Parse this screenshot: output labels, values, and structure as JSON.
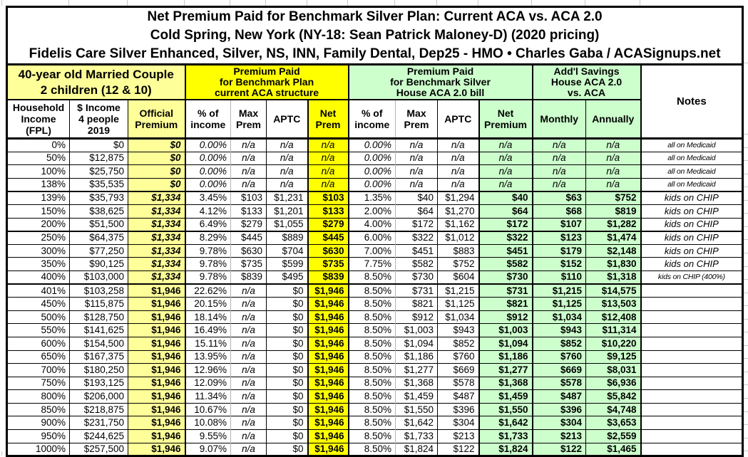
{
  "colors": {
    "pale_yellow": "#FFFF99",
    "bright_yellow": "#FFFF00",
    "pale_green": "#CCFFCC",
    "border": "#000000",
    "gridline": "#C9C9C9"
  },
  "chart_data": {
    "type": "table",
    "title": "Net Premium Paid for Benchmark Silver Plan: Current ACA vs. ACA 2.0",
    "subtitle": "Cold Spring, New York (NY-18: Sean Patrick Maloney-D) (2020 pricing)",
    "plan_attribution": "Fidelis Care Silver Enhanced, Silver, NS, INN, Family Dental, Dep25 - HMO • Charles Gaba / ACASignups.net",
    "column_groups": [
      {
        "label": "40-year old Married Couple\n2 children (12 & 10)",
        "span": 3
      },
      {
        "label": "Premium Paid\nfor Benchmark Plan\ncurrent ACA structure",
        "span": 4
      },
      {
        "label": "Premium Paid\nfor Benchmark Silver\nHouse ACA 2.0 bill",
        "span": 4
      },
      {
        "label": "Add'l Savings\nHouse ACA 2.0\nvs. ACA",
        "span": 2
      },
      {
        "label": "Notes",
        "span": 1
      }
    ],
    "columns": [
      "Household\nIncome\n(FPL)",
      "$ Income\n4 people\n2019",
      "Official\nPremium",
      "% of\nincome",
      "Max\nPrem",
      "APTC",
      "Net\nPrem",
      "% of\nincome",
      "Max\nPrem",
      "APTC",
      "Net\nPremium",
      "Monthly",
      "Annually",
      "Notes"
    ],
    "rows": [
      [
        "0%",
        "$0",
        "$0",
        "0.00%",
        "n/a",
        "n/a",
        "n/a",
        "0.00%",
        "n/a",
        "n/a",
        "n/a",
        "n/a",
        "n/a",
        "all on Medicaid"
      ],
      [
        "50%",
        "$12,875",
        "$0",
        "0.00%",
        "n/a",
        "n/a",
        "n/a",
        "0.00%",
        "n/a",
        "n/a",
        "n/a",
        "n/a",
        "n/a",
        "all on Medicaid"
      ],
      [
        "100%",
        "$25,750",
        "$0",
        "0.00%",
        "n/a",
        "n/a",
        "n/a",
        "0.00%",
        "n/a",
        "n/a",
        "n/a",
        "n/a",
        "n/a",
        "all on Medicaid"
      ],
      [
        "138%",
        "$35,535",
        "$0",
        "0.00%",
        "n/a",
        "n/a",
        "n/a",
        "0.00%",
        "n/a",
        "n/a",
        "n/a",
        "n/a",
        "n/a",
        "all on Medicaid"
      ],
      [
        "139%",
        "$35,793",
        "$1,334",
        "3.45%",
        "$103",
        "$1,231",
        "$103",
        "1.35%",
        "$40",
        "$1,294",
        "$40",
        "$63",
        "$752",
        "kids on CHIP"
      ],
      [
        "150%",
        "$38,625",
        "$1,334",
        "4.12%",
        "$133",
        "$1,201",
        "$133",
        "2.00%",
        "$64",
        "$1,270",
        "$64",
        "$68",
        "$819",
        "kids on CHIP"
      ],
      [
        "200%",
        "$51,500",
        "$1,334",
        "6.49%",
        "$279",
        "$1,055",
        "$279",
        "4.00%",
        "$172",
        "$1,162",
        "$172",
        "$107",
        "$1,282",
        "kids on CHIP"
      ],
      [
        "250%",
        "$64,375",
        "$1,334",
        "8.29%",
        "$445",
        "$889",
        "$445",
        "6.00%",
        "$322",
        "$1,012",
        "$322",
        "$123",
        "$1,474",
        "kids on CHIP"
      ],
      [
        "300%",
        "$77,250",
        "$1,334",
        "9.78%",
        "$630",
        "$704",
        "$630",
        "7.00%",
        "$451",
        "$883",
        "$451",
        "$179",
        "$2,148",
        "kids on CHIP"
      ],
      [
        "350%",
        "$90,125",
        "$1,334",
        "9.78%",
        "$735",
        "$599",
        "$735",
        "7.75%",
        "$582",
        "$752",
        "$582",
        "$152",
        "$1,830",
        "kids on CHIP"
      ],
      [
        "400%",
        "$103,000",
        "$1,334",
        "9.78%",
        "$839",
        "$495",
        "$839",
        "8.50%",
        "$730",
        "$604",
        "$730",
        "$110",
        "$1,318",
        "kids on CHIP (400%)"
      ],
      [
        "401%",
        "$103,258",
        "$1,946",
        "22.62%",
        "n/a",
        "$0",
        "$1,946",
        "8.50%",
        "$731",
        "$1,215",
        "$731",
        "$1,215",
        "$14,575",
        ""
      ],
      [
        "450%",
        "$115,875",
        "$1,946",
        "20.15%",
        "n/a",
        "$0",
        "$1,946",
        "8.50%",
        "$821",
        "$1,125",
        "$821",
        "$1,125",
        "$13,503",
        ""
      ],
      [
        "500%",
        "$128,750",
        "$1,946",
        "18.14%",
        "n/a",
        "$0",
        "$1,946",
        "8.50%",
        "$912",
        "$1,034",
        "$912",
        "$1,034",
        "$12,408",
        ""
      ],
      [
        "550%",
        "$141,625",
        "$1,946",
        "16.49%",
        "n/a",
        "$0",
        "$1,946",
        "8.50%",
        "$1,003",
        "$943",
        "$1,003",
        "$943",
        "$11,314",
        ""
      ],
      [
        "600%",
        "$154,500",
        "$1,946",
        "15.11%",
        "n/a",
        "$0",
        "$1,946",
        "8.50%",
        "$1,094",
        "$852",
        "$1,094",
        "$852",
        "$10,220",
        ""
      ],
      [
        "650%",
        "$167,375",
        "$1,946",
        "13.95%",
        "n/a",
        "$0",
        "$1,946",
        "8.50%",
        "$1,186",
        "$760",
        "$1,186",
        "$760",
        "$9,125",
        ""
      ],
      [
        "700%",
        "$180,250",
        "$1,946",
        "12.96%",
        "n/a",
        "$0",
        "$1,946",
        "8.50%",
        "$1,277",
        "$669",
        "$1,277",
        "$669",
        "$8,031",
        ""
      ],
      [
        "750%",
        "$193,125",
        "$1,946",
        "12.09%",
        "n/a",
        "$0",
        "$1,946",
        "8.50%",
        "$1,368",
        "$578",
        "$1,368",
        "$578",
        "$6,936",
        ""
      ],
      [
        "800%",
        "$206,000",
        "$1,946",
        "11.34%",
        "n/a",
        "$0",
        "$1,946",
        "8.50%",
        "$1,459",
        "$487",
        "$1,459",
        "$487",
        "$5,842",
        ""
      ],
      [
        "850%",
        "$218,875",
        "$1,946",
        "10.67%",
        "n/a",
        "$0",
        "$1,946",
        "8.50%",
        "$1,550",
        "$396",
        "$1,550",
        "$396",
        "$4,748",
        ""
      ],
      [
        "900%",
        "$231,750",
        "$1,946",
        "10.08%",
        "n/a",
        "$0",
        "$1,946",
        "8.50%",
        "$1,642",
        "$304",
        "$1,642",
        "$304",
        "$3,653",
        ""
      ],
      [
        "950%",
        "$244,625",
        "$1,946",
        "9.55%",
        "n/a",
        "$0",
        "$1,946",
        "8.50%",
        "$1,733",
        "$213",
        "$1,733",
        "$213",
        "$2,559",
        ""
      ],
      [
        "1000%",
        "$257,500",
        "$1,946",
        "9.07%",
        "n/a",
        "$0",
        "$1,946",
        "8.50%",
        "$1,824",
        "$122",
        "$1,824",
        "$122",
        "$1,465",
        ""
      ]
    ]
  }
}
